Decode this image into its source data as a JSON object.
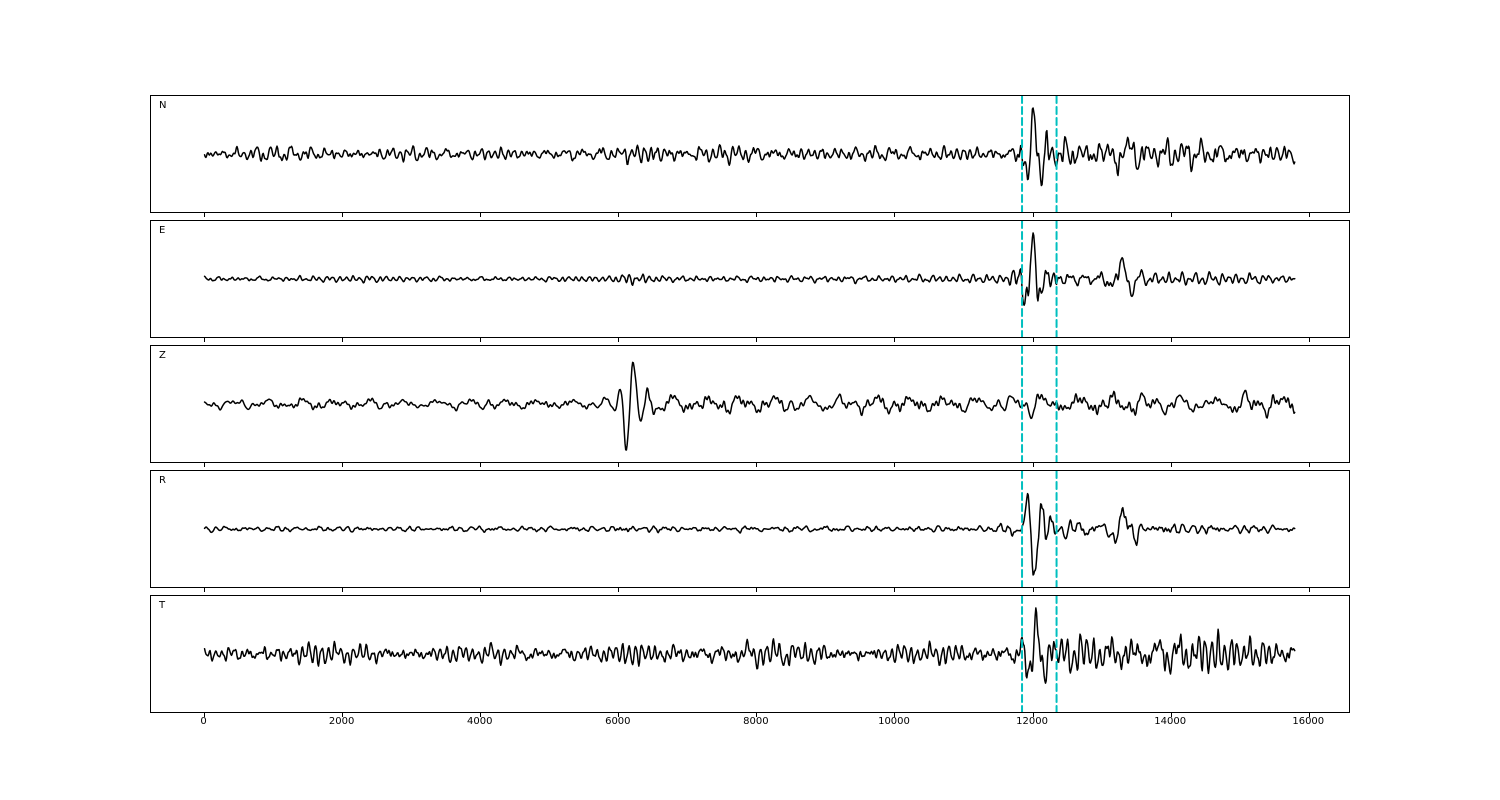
{
  "figure": {
    "background": "#ffffff",
    "trace_color": "#000000",
    "pick_line_color": "#00bfbf",
    "spine_color": "#000000"
  },
  "chart_data": {
    "type": "line",
    "title": "",
    "xlabel": "",
    "ylabel": "",
    "grid": false,
    "legend": false,
    "xlim": [
      -790,
      16590
    ],
    "x_ticks": [
      0,
      2000,
      4000,
      6000,
      8000,
      10000,
      12000,
      14000,
      16000
    ],
    "x_tick_labels": [
      "0",
      "2000",
      "4000",
      "6000",
      "8000",
      "10000",
      "12000",
      "14000",
      "16000"
    ],
    "sample_spacing": 10,
    "n_samples": 1580,
    "trace_x_end": 15780,
    "pick_lines": [
      11840,
      12340
    ],
    "panels": [
      {
        "label": "N",
        "seed": 101,
        "envelope": [
          [
            0,
            0.2
          ],
          [
            400,
            0.24
          ],
          [
            800,
            0.3
          ],
          [
            1200,
            0.34
          ],
          [
            1600,
            0.3
          ],
          [
            2100,
            0.26
          ],
          [
            2600,
            0.24
          ],
          [
            3200,
            0.26
          ],
          [
            3800,
            0.22
          ],
          [
            4400,
            0.24
          ],
          [
            5000,
            0.22
          ],
          [
            5600,
            0.26
          ],
          [
            6100,
            0.34
          ],
          [
            6500,
            0.4
          ],
          [
            7000,
            0.32
          ],
          [
            7600,
            0.3
          ],
          [
            8200,
            0.32
          ],
          [
            9000,
            0.3
          ],
          [
            9800,
            0.28
          ],
          [
            10600,
            0.28
          ],
          [
            11300,
            0.26
          ],
          [
            11700,
            0.3
          ],
          [
            11900,
            1.0
          ],
          [
            12150,
            0.8
          ],
          [
            12500,
            0.55
          ],
          [
            12900,
            0.5
          ],
          [
            13300,
            0.68
          ],
          [
            13700,
            0.52
          ],
          [
            14200,
            0.58
          ],
          [
            14700,
            0.48
          ],
          [
            15300,
            0.42
          ],
          [
            15780,
            0.38
          ]
        ],
        "wavelets": [
          {
            "x0": 12010,
            "sigma": 150,
            "period": 230,
            "amp": 1.1,
            "phase": 1.2
          },
          {
            "x0": 13300,
            "sigma": 220,
            "period": 300,
            "amp": 0.35,
            "phase": 0.0
          }
        ]
      },
      {
        "label": "E",
        "seed": 202,
        "envelope": [
          [
            0,
            0.14
          ],
          [
            1000,
            0.13
          ],
          [
            2000,
            0.14
          ],
          [
            3000,
            0.13
          ],
          [
            4000,
            0.14
          ],
          [
            5000,
            0.13
          ],
          [
            5900,
            0.15
          ],
          [
            6150,
            0.3
          ],
          [
            6500,
            0.2
          ],
          [
            7000,
            0.16
          ],
          [
            8000,
            0.16
          ],
          [
            9000,
            0.17
          ],
          [
            10000,
            0.18
          ],
          [
            11000,
            0.18
          ],
          [
            11600,
            0.22
          ],
          [
            11880,
            1.0
          ],
          [
            12150,
            0.75
          ],
          [
            12500,
            0.38
          ],
          [
            12900,
            0.3
          ],
          [
            13250,
            0.55
          ],
          [
            13600,
            0.3
          ],
          [
            14200,
            0.26
          ],
          [
            14800,
            0.24
          ],
          [
            15780,
            0.2
          ]
        ],
        "wavelets": [
          {
            "x0": 11990,
            "sigma": 140,
            "period": 220,
            "amp": 1.2,
            "phase": 1.0
          },
          {
            "x0": 13300,
            "sigma": 180,
            "period": 320,
            "amp": 0.5,
            "phase": 2.0
          }
        ]
      },
      {
        "label": "Z",
        "seed": 303,
        "envelope": [
          [
            0,
            0.28
          ],
          [
            600,
            0.32
          ],
          [
            1200,
            0.36
          ],
          [
            1800,
            0.3
          ],
          [
            2400,
            0.28
          ],
          [
            3000,
            0.3
          ],
          [
            3400,
            0.38
          ],
          [
            3900,
            0.3
          ],
          [
            4500,
            0.28
          ],
          [
            5200,
            0.3
          ],
          [
            5900,
            0.32
          ],
          [
            6050,
            1.0
          ],
          [
            6350,
            0.9
          ],
          [
            6700,
            0.55
          ],
          [
            7200,
            0.48
          ],
          [
            7800,
            0.52
          ],
          [
            8400,
            0.58
          ],
          [
            9000,
            0.52
          ],
          [
            9600,
            0.5
          ],
          [
            10300,
            0.52
          ],
          [
            11000,
            0.48
          ],
          [
            11700,
            0.55
          ],
          [
            12000,
            0.65
          ],
          [
            12400,
            0.58
          ],
          [
            12900,
            0.6
          ],
          [
            13400,
            0.62
          ],
          [
            14000,
            0.55
          ],
          [
            14600,
            0.58
          ],
          [
            15200,
            0.6
          ],
          [
            15780,
            0.62
          ]
        ],
        "wavelets": [
          {
            "x0": 6180,
            "sigma": 180,
            "period": 210,
            "amp": 1.2,
            "phase": 0.5
          }
        ]
      },
      {
        "label": "R",
        "seed": 404,
        "envelope": [
          [
            0,
            0.12
          ],
          [
            1000,
            0.12
          ],
          [
            2000,
            0.13
          ],
          [
            3000,
            0.12
          ],
          [
            4000,
            0.13
          ],
          [
            5000,
            0.12
          ],
          [
            5900,
            0.14
          ],
          [
            6150,
            0.26
          ],
          [
            6500,
            0.17
          ],
          [
            7000,
            0.14
          ],
          [
            8000,
            0.14
          ],
          [
            9000,
            0.15
          ],
          [
            10000,
            0.15
          ],
          [
            11000,
            0.16
          ],
          [
            11500,
            0.18
          ],
          [
            11850,
            0.5
          ],
          [
            11980,
            1.0
          ],
          [
            12250,
            0.7
          ],
          [
            12600,
            0.35
          ],
          [
            13000,
            0.28
          ],
          [
            13300,
            0.55
          ],
          [
            13650,
            0.35
          ],
          [
            14200,
            0.26
          ],
          [
            14800,
            0.22
          ],
          [
            15780,
            0.16
          ]
        ],
        "wavelets": [
          {
            "x0": 12000,
            "sigma": 140,
            "period": 230,
            "amp": 1.3,
            "phase": 4.2
          },
          {
            "x0": 13320,
            "sigma": 200,
            "period": 330,
            "amp": 0.5,
            "phase": 1.5
          }
        ]
      },
      {
        "label": "T",
        "seed": 505,
        "envelope": [
          [
            0,
            0.3
          ],
          [
            500,
            0.38
          ],
          [
            1000,
            0.44
          ],
          [
            1500,
            0.48
          ],
          [
            2000,
            0.42
          ],
          [
            2600,
            0.4
          ],
          [
            3200,
            0.38
          ],
          [
            3800,
            0.36
          ],
          [
            4400,
            0.34
          ],
          [
            5000,
            0.34
          ],
          [
            5600,
            0.38
          ],
          [
            6200,
            0.48
          ],
          [
            6800,
            0.44
          ],
          [
            7400,
            0.44
          ],
          [
            8000,
            0.46
          ],
          [
            8600,
            0.5
          ],
          [
            9200,
            0.42
          ],
          [
            9800,
            0.4
          ],
          [
            10500,
            0.42
          ],
          [
            11200,
            0.42
          ],
          [
            11700,
            0.5
          ],
          [
            11950,
            1.0
          ],
          [
            12250,
            0.78
          ],
          [
            12700,
            0.7
          ],
          [
            13200,
            0.78
          ],
          [
            13700,
            0.82
          ],
          [
            14250,
            1.0
          ],
          [
            14700,
            0.78
          ],
          [
            15200,
            0.7
          ],
          [
            15780,
            0.55
          ]
        ],
        "wavelets": [
          {
            "x0": 12030,
            "sigma": 170,
            "period": 240,
            "amp": 0.8,
            "phase": 0.8
          },
          {
            "x0": 14300,
            "sigma": 250,
            "period": 300,
            "amp": 0.5,
            "phase": 0.0
          }
        ]
      }
    ]
  }
}
